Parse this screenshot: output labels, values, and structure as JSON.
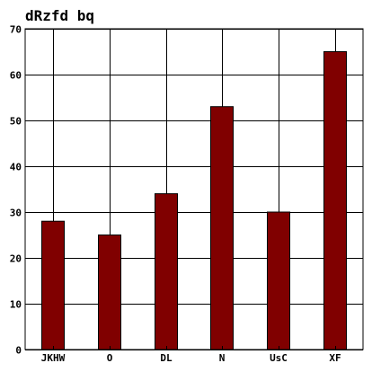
{
  "chart_data": {
    "type": "bar",
    "title": "dRzfd bq",
    "xlabel": "",
    "ylabel": "",
    "categories": [
      "JKHW",
      "O",
      "DL",
      "N",
      "UsC",
      "XF"
    ],
    "values": [
      28,
      25,
      34,
      53,
      30,
      65
    ],
    "ylim": [
      0,
      70
    ],
    "yticks": [
      0,
      10,
      20,
      30,
      40,
      50,
      60,
      70
    ],
    "grid": true,
    "bar_color": "#800000",
    "edge_color": "#000000"
  }
}
